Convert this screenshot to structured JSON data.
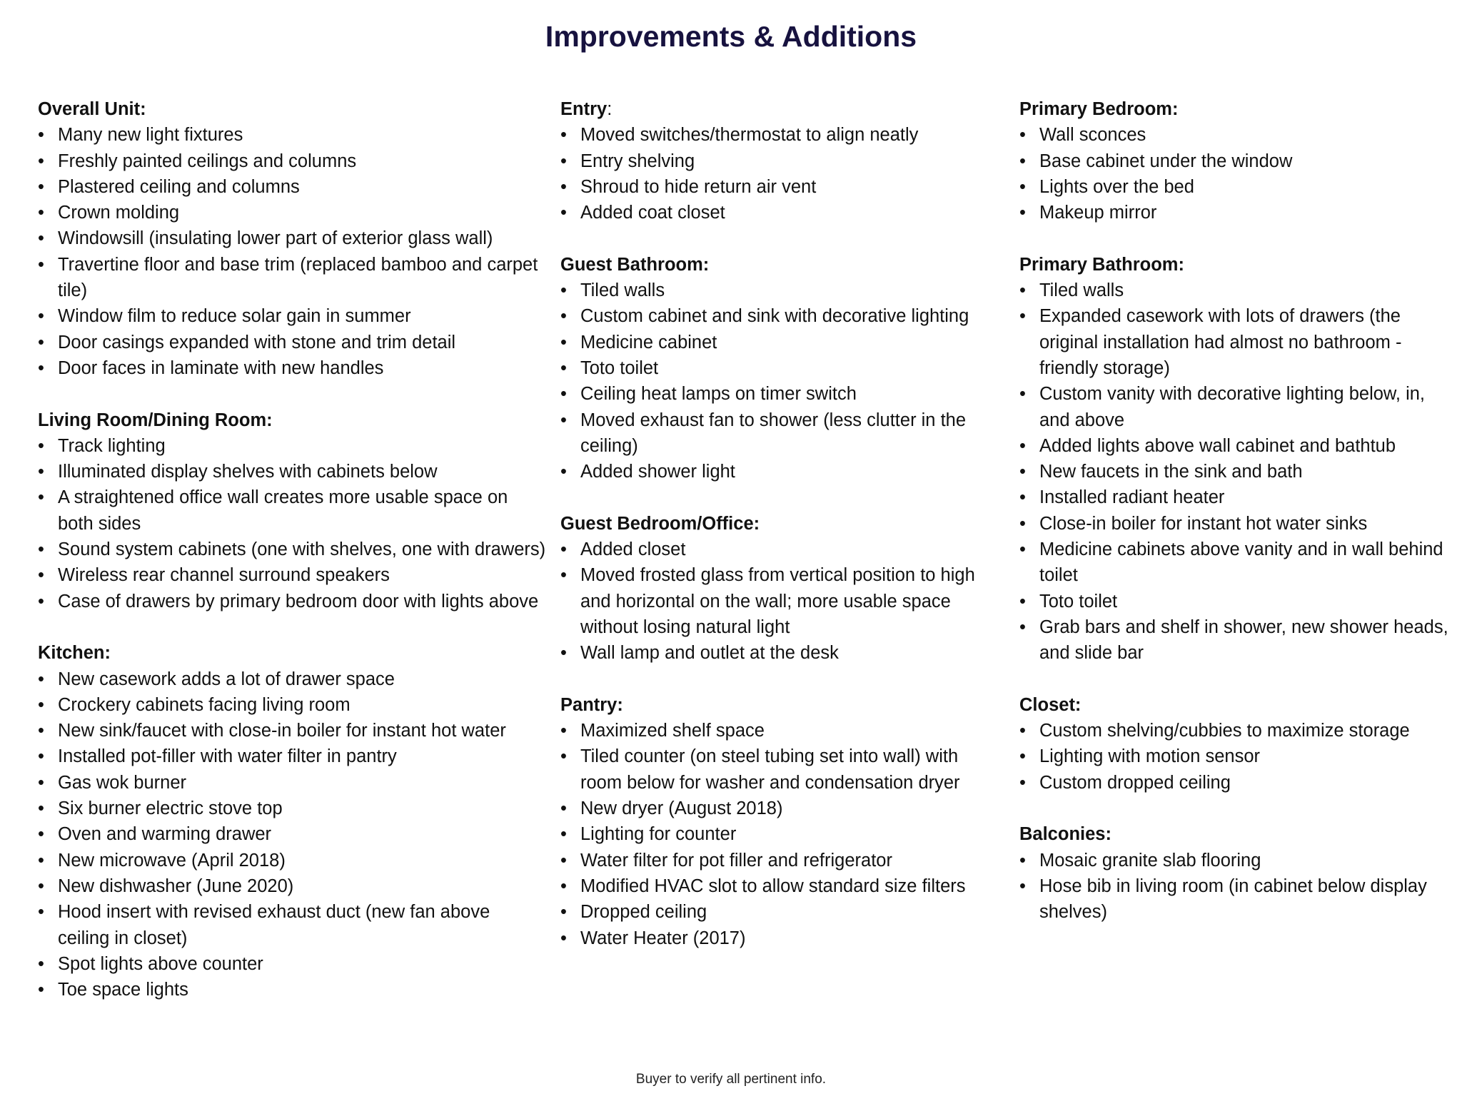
{
  "title": "Improvements & Additions",
  "footer": "Buyer to verify all pertinent info.",
  "columns": [
    [
      {
        "heading": "Overall Unit:",
        "items": [
          "Many new light fixtures",
          "Freshly painted ceilings and columns",
          "Plastered ceiling and columns",
          "Crown molding",
          "Windowsill (insulating lower part of exterior glass wall)",
          "Travertine floor and base trim (replaced bamboo and carpet tile)",
          "Window film to reduce solar gain in summer",
          "Door casings expanded with stone and trim detail",
          "Door faces in laminate with new handles"
        ]
      },
      {
        "heading": "Living Room/Dining Room:",
        "items": [
          "Track lighting",
          "Illuminated display shelves with cabinets below",
          "A straightened office wall creates more usable space on both sides",
          "Sound system cabinets (one with shelves, one with drawers)",
          "Wireless rear channel surround speakers",
          "Case of drawers by primary bedroom door with lights above"
        ]
      },
      {
        "heading": "Kitchen:",
        "items": [
          "New casework adds a lot of drawer space",
          "Crockery cabinets facing living room",
          "New sink/faucet with close-in boiler for instant hot water",
          "Installed pot-filler with water filter in pantry",
          "Gas wok burner",
          "Six burner electric stove top",
          "Oven and warming drawer",
          "New microwave (April 2018)",
          "New dishwasher (June 2020)",
          "Hood insert with revised exhaust duct (new fan above ceiling in closet)",
          "Spot lights above counter",
          "Toe space lights"
        ]
      }
    ],
    [
      {
        "heading": "Entry",
        "heading_suffix": ":",
        "items": [
          "Moved switches/thermostat to align neatly",
          "Entry shelving",
          "Shroud to hide return air vent",
          "Added coat closet"
        ]
      },
      {
        "heading": "Guest Bathroom:",
        "items": [
          "Tiled walls",
          "Custom cabinet and sink with decorative lighting",
          "Medicine cabinet",
          "Toto toilet",
          "Ceiling heat lamps on timer switch",
          "Moved exhaust fan to shower (less clutter in the ceiling)",
          "Added shower light"
        ]
      },
      {
        "heading": "Guest Bedroom/Office:",
        "items": [
          "Added closet",
          "Moved frosted glass from vertical position to high and horizontal on the wall; more usable space without losing natural light",
          "Wall lamp and outlet at the desk"
        ]
      },
      {
        "heading": "Pantry:",
        "items": [
          "Maximized shelf space",
          "Tiled counter (on steel tubing set into wall) with room below for washer and condensation dryer",
          "New dryer (August 2018)",
          "Lighting for counter",
          "Water filter for pot filler and refrigerator",
          "Modified HVAC slot to allow standard size filters",
          "Dropped ceiling",
          "Water Heater (2017)"
        ]
      }
    ],
    [
      {
        "heading": "Primary Bedroom:",
        "items": [
          "Wall sconces",
          "Base cabinet under the window",
          "Lights over the bed",
          "Makeup mirror"
        ]
      },
      {
        "heading": "Primary Bathroom:",
        "items": [
          "Tiled walls",
          "Expanded casework with lots of drawers (the original installation had almost no bathroom -friendly storage)",
          "Custom vanity with decorative lighting below, in, and above",
          "Added lights above wall cabinet and bathtub",
          "New faucets in the sink and bath",
          "Installed radiant heater",
          "Close-in boiler for instant hot water sinks",
          "Medicine cabinets above vanity and in wall behind toilet",
          "Toto toilet",
          "Grab bars and shelf in shower, new shower heads, and slide bar"
        ]
      },
      {
        "heading": "Closet:",
        "items": [
          "Custom shelving/cubbies to maximize storage",
          "Lighting with motion sensor",
          "Custom dropped ceiling"
        ]
      },
      {
        "heading": "Balconies:",
        "extra_space": true,
        "items": [
          "Mosaic granite slab flooring",
          "Hose bib in living room (in cabinet below display shelves)"
        ]
      }
    ]
  ]
}
